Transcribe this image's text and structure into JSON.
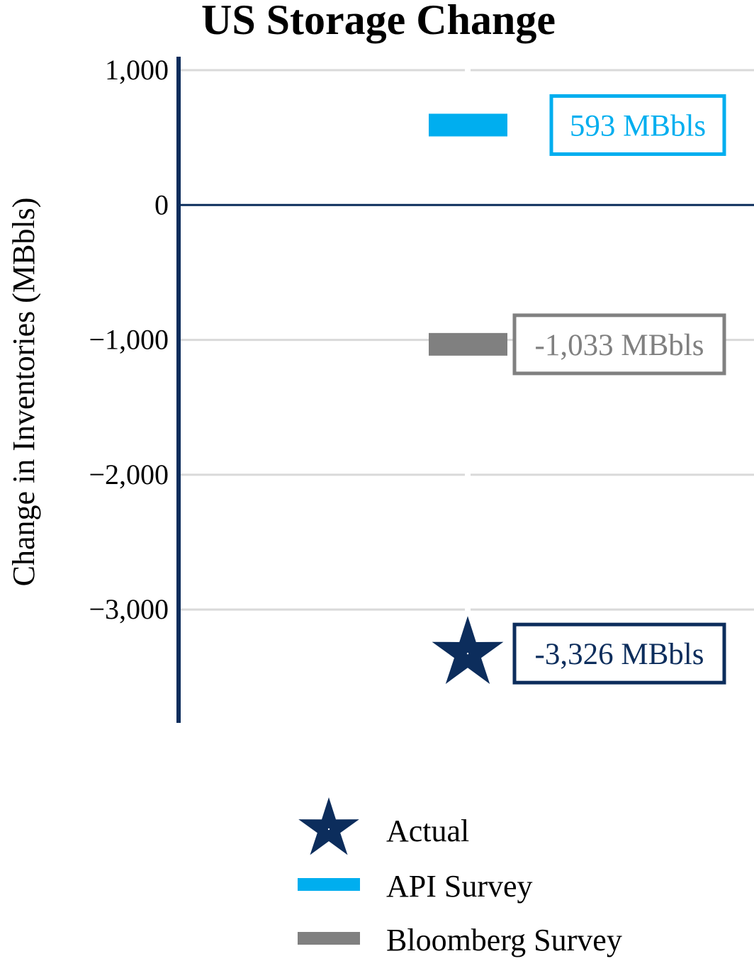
{
  "chart_data": {
    "type": "scatter",
    "title": "US Storage Change",
    "xlabel": "",
    "ylabel": "Change in Inventories (MBbls)",
    "ylim": [
      -3840,
      1100
    ],
    "yticks": [
      1000,
      0,
      -1000,
      -2000,
      -3000
    ],
    "ytick_labels": [
      "1,000",
      "0",
      "−1,000",
      "−2,000",
      "−3,000"
    ],
    "grid": true,
    "legend_position": "bottom",
    "series": [
      {
        "name": "Actual",
        "marker": "star",
        "value": -3326,
        "color": "#0c2d5c",
        "label": "-3,326 MBbls"
      },
      {
        "name": "API Survey",
        "marker": "bar",
        "value": 593,
        "color": "#00aeef",
        "label": "593 MBbls"
      },
      {
        "name": "Bloomberg Survey",
        "marker": "bar",
        "value": -1033,
        "color": "#808080",
        "label": "-1,033 MBbls"
      }
    ]
  },
  "colors": {
    "axis": "#0c2d5c",
    "grid": "#d9d9d9"
  }
}
